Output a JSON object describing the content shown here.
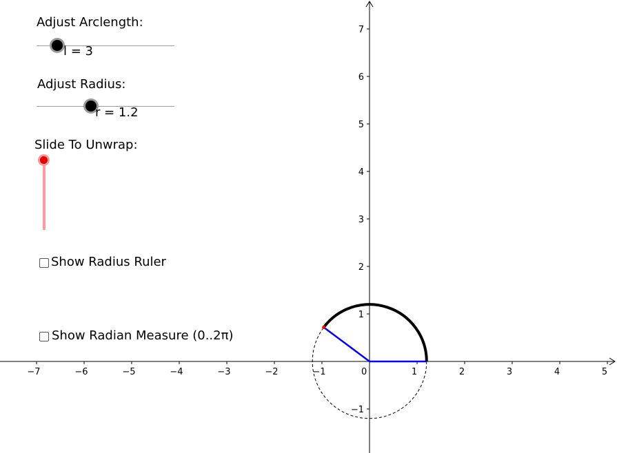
{
  "controls": {
    "arclength": {
      "title": "Adjust Arclength:",
      "value_text": "l = 3",
      "value": 3
    },
    "radius": {
      "title": "Adjust Radius:",
      "value_text": "r = 1.2",
      "value": 1.2
    },
    "unwrap": {
      "title": "Slide To Unwrap:",
      "value": 0
    },
    "show_radius_ruler": {
      "label": "Show Radius Ruler",
      "checked": false
    },
    "show_radian_measure": {
      "label": "Show Radian Measure (0..2π)",
      "checked": false
    }
  },
  "graph": {
    "x_ticks": [
      "−7",
      "−6",
      "−5",
      "−4",
      "−3",
      "−2",
      "−1",
      "0",
      "1",
      "2",
      "3",
      "4",
      "5"
    ],
    "y_ticks": [
      "−1",
      "1",
      "2",
      "3",
      "4",
      "5",
      "6",
      "7"
    ],
    "radius": 1.2,
    "arclength": 3,
    "colors": {
      "arc": "#000000",
      "radius_lines": "#0000ff",
      "circle": "#000000",
      "point": "#ff0000"
    }
  }
}
